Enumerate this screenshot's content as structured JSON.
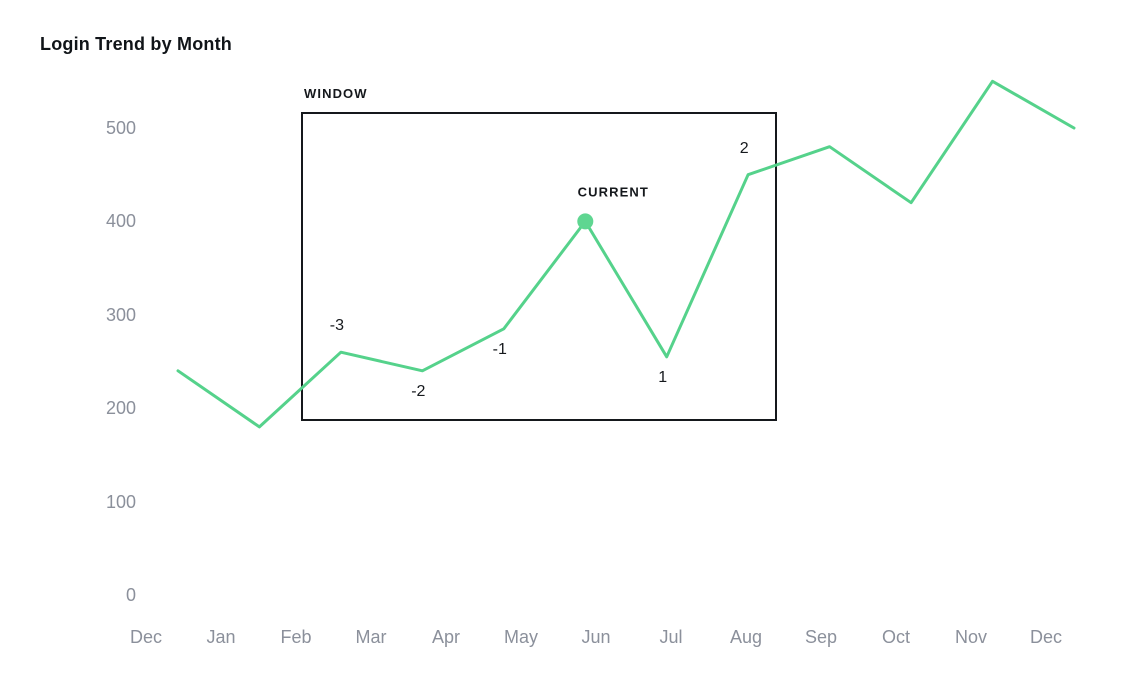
{
  "page": {
    "background": "#ffffff",
    "title": "Login Trend by Month"
  },
  "chart_data": {
    "type": "line",
    "title": "Login Trend by Month",
    "xlabel": "",
    "ylabel": "",
    "months": [
      "Jan",
      "Feb",
      "Mar",
      "Apr",
      "May",
      "Jun",
      "Jul",
      "Aug",
      "Sep",
      "Oct",
      "Nov",
      "Dec"
    ],
    "values": [
      240,
      180,
      260,
      240,
      285,
      400,
      255,
      450,
      480,
      420,
      550,
      500
    ],
    "x_tick_labels": [
      "Dec",
      "Jan",
      "Feb",
      "Mar",
      "Apr",
      "May",
      "Jun",
      "Jul",
      "Aug",
      "Sep",
      "Oct",
      "Nov",
      "Dec"
    ],
    "y_tick_labels": [
      "0",
      "100",
      "200",
      "300",
      "400",
      "500"
    ],
    "y_tick_values": [
      0,
      100,
      200,
      300,
      400,
      500
    ],
    "ylim": [
      0,
      560
    ],
    "grid": false,
    "legend": false,
    "line_color": "#55d28b",
    "point_color": "#5fd691",
    "tick_color": "#8b909b",
    "annotation_color": "#15181c",
    "annotations": {
      "window": {
        "label": "WINDOW",
        "covers_months": [
          "Mar",
          "Apr",
          "May",
          "Jun",
          "Jul",
          "Aug"
        ]
      },
      "current": {
        "label": "CURRENT",
        "month": "Jun",
        "value": 400
      },
      "offset_labels": [
        {
          "text": "-3",
          "month": "Mar",
          "placement": "above"
        },
        {
          "text": "-2",
          "month": "Apr",
          "placement": "below"
        },
        {
          "text": "-1",
          "month": "May",
          "placement": "below"
        },
        {
          "text": "1",
          "month": "Jul",
          "placement": "below"
        },
        {
          "text": "2",
          "month": "Aug",
          "placement": "above"
        }
      ]
    }
  }
}
